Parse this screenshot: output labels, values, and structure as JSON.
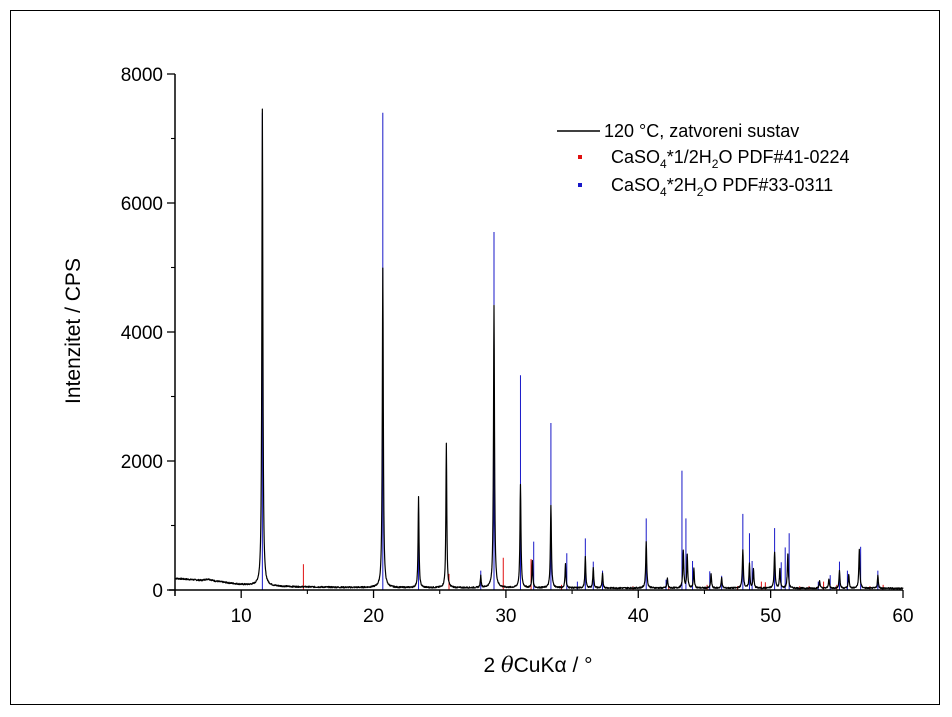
{
  "chart_data": {
    "type": "line",
    "xlabel_prefix": "2 ",
    "xlabel_theta": "θ",
    "xlabel_suffix": "CuKα / °",
    "ylabel": "Intenzitet / CPS",
    "xlim": [
      5,
      60
    ],
    "ylim": [
      0,
      8000
    ],
    "x_ticks": [
      "10",
      "20",
      "30",
      "40",
      "50",
      "60"
    ],
    "y_ticks": [
      "0",
      "2000",
      "4000",
      "6000",
      "8000"
    ],
    "grid": false,
    "legend_position": "top-right",
    "colors": {
      "measured": "#000000",
      "hemihydrate": "#e01010",
      "dihydrate": "#1818c8"
    },
    "series": [
      {
        "name": "120 °C, zatvoreni sustav",
        "kind": "pattern",
        "baseline": [
          [
            5,
            180
          ],
          [
            6,
            165
          ],
          [
            7,
            150
          ],
          [
            7.5,
            170
          ],
          [
            8,
            140
          ],
          [
            9,
            110
          ],
          [
            10,
            85
          ],
          [
            11,
            70
          ],
          [
            12,
            60
          ],
          [
            14,
            50
          ],
          [
            16,
            45
          ],
          [
            18,
            40
          ],
          [
            20,
            38
          ],
          [
            22,
            36
          ],
          [
            24,
            35
          ],
          [
            26,
            34
          ],
          [
            28,
            33
          ],
          [
            30,
            33
          ],
          [
            32,
            32
          ],
          [
            34,
            32
          ],
          [
            36,
            31
          ],
          [
            38,
            30
          ],
          [
            40,
            30
          ],
          [
            42,
            30
          ],
          [
            44,
            30
          ],
          [
            46,
            29
          ],
          [
            48,
            28
          ],
          [
            50,
            28
          ],
          [
            52,
            27
          ],
          [
            54,
            27
          ],
          [
            56,
            26
          ],
          [
            58,
            26
          ],
          [
            60,
            25
          ]
        ],
        "peaks": [
          {
            "x": 11.6,
            "h": 7400,
            "w": 0.09
          },
          {
            "x": 20.7,
            "h": 4950,
            "w": 0.09
          },
          {
            "x": 23.4,
            "h": 1400,
            "w": 0.08
          },
          {
            "x": 25.5,
            "h": 2250,
            "w": 0.08
          },
          {
            "x": 28.1,
            "h": 180,
            "w": 0.08
          },
          {
            "x": 29.1,
            "h": 4380,
            "w": 0.09
          },
          {
            "x": 31.1,
            "h": 1600,
            "w": 0.09
          },
          {
            "x": 32.0,
            "h": 420,
            "w": 0.08
          },
          {
            "x": 33.4,
            "h": 1270,
            "w": 0.09
          },
          {
            "x": 34.5,
            "h": 380,
            "w": 0.08
          },
          {
            "x": 36.0,
            "h": 480,
            "w": 0.08
          },
          {
            "x": 36.6,
            "h": 320,
            "w": 0.08
          },
          {
            "x": 37.3,
            "h": 220,
            "w": 0.08
          },
          {
            "x": 40.6,
            "h": 720,
            "w": 0.09
          },
          {
            "x": 42.2,
            "h": 150,
            "w": 0.08
          },
          {
            "x": 43.4,
            "h": 580,
            "w": 0.09
          },
          {
            "x": 43.7,
            "h": 520,
            "w": 0.08
          },
          {
            "x": 44.2,
            "h": 300,
            "w": 0.08
          },
          {
            "x": 45.5,
            "h": 220,
            "w": 0.08
          },
          {
            "x": 46.3,
            "h": 160,
            "w": 0.08
          },
          {
            "x": 47.9,
            "h": 600,
            "w": 0.09
          },
          {
            "x": 48.4,
            "h": 380,
            "w": 0.08
          },
          {
            "x": 48.7,
            "h": 300,
            "w": 0.08
          },
          {
            "x": 50.3,
            "h": 560,
            "w": 0.09
          },
          {
            "x": 50.7,
            "h": 300,
            "w": 0.08
          },
          {
            "x": 51.3,
            "h": 520,
            "w": 0.09
          },
          {
            "x": 53.7,
            "h": 120,
            "w": 0.08
          },
          {
            "x": 54.4,
            "h": 150,
            "w": 0.08
          },
          {
            "x": 55.2,
            "h": 280,
            "w": 0.08
          },
          {
            "x": 55.9,
            "h": 220,
            "w": 0.08
          },
          {
            "x": 56.7,
            "h": 600,
            "w": 0.09
          },
          {
            "x": 58.1,
            "h": 200,
            "w": 0.08
          }
        ]
      },
      {
        "name_parts": [
          "CaSO",
          "4",
          "*1/2H",
          "2",
          "O PDF#41-0224"
        ],
        "kind": "reference",
        "color_key": "hemihydrate",
        "lines": [
          [
            14.7,
            400
          ],
          [
            25.7,
            250
          ],
          [
            29.8,
            500
          ],
          [
            31.9,
            480
          ],
          [
            34.2,
            80
          ],
          [
            39.6,
            60
          ],
          [
            42.3,
            60
          ],
          [
            45.2,
            80
          ],
          [
            47.5,
            60
          ],
          [
            49.3,
            130
          ],
          [
            49.6,
            120
          ],
          [
            52.2,
            60
          ],
          [
            52.9,
            60
          ],
          [
            54.0,
            130
          ],
          [
            55.0,
            80
          ],
          [
            57.5,
            60
          ],
          [
            58.5,
            80
          ]
        ]
      },
      {
        "name_parts": [
          "CaSO",
          "4",
          "*2H",
          "2",
          "O PDF#33-0311"
        ],
        "kind": "reference",
        "color_key": "dihydrate",
        "lines": [
          [
            11.6,
            7400
          ],
          [
            20.7,
            7400
          ],
          [
            23.4,
            1280
          ],
          [
            28.1,
            300
          ],
          [
            29.1,
            5550
          ],
          [
            31.1,
            3330
          ],
          [
            32.1,
            750
          ],
          [
            33.4,
            2590
          ],
          [
            34.6,
            570
          ],
          [
            35.4,
            130
          ],
          [
            36.0,
            800
          ],
          [
            36.6,
            440
          ],
          [
            37.3,
            300
          ],
          [
            40.6,
            1110
          ],
          [
            42.1,
            160
          ],
          [
            43.3,
            1850
          ],
          [
            43.6,
            1110
          ],
          [
            44.1,
            450
          ],
          [
            45.4,
            290
          ],
          [
            46.3,
            220
          ],
          [
            47.9,
            1180
          ],
          [
            48.4,
            880
          ],
          [
            48.6,
            450
          ],
          [
            50.3,
            960
          ],
          [
            50.8,
            430
          ],
          [
            51.1,
            660
          ],
          [
            51.4,
            880
          ],
          [
            53.6,
            130
          ],
          [
            54.5,
            230
          ],
          [
            55.2,
            440
          ],
          [
            55.8,
            300
          ],
          [
            56.8,
            670
          ],
          [
            58.1,
            300
          ]
        ]
      }
    ]
  }
}
